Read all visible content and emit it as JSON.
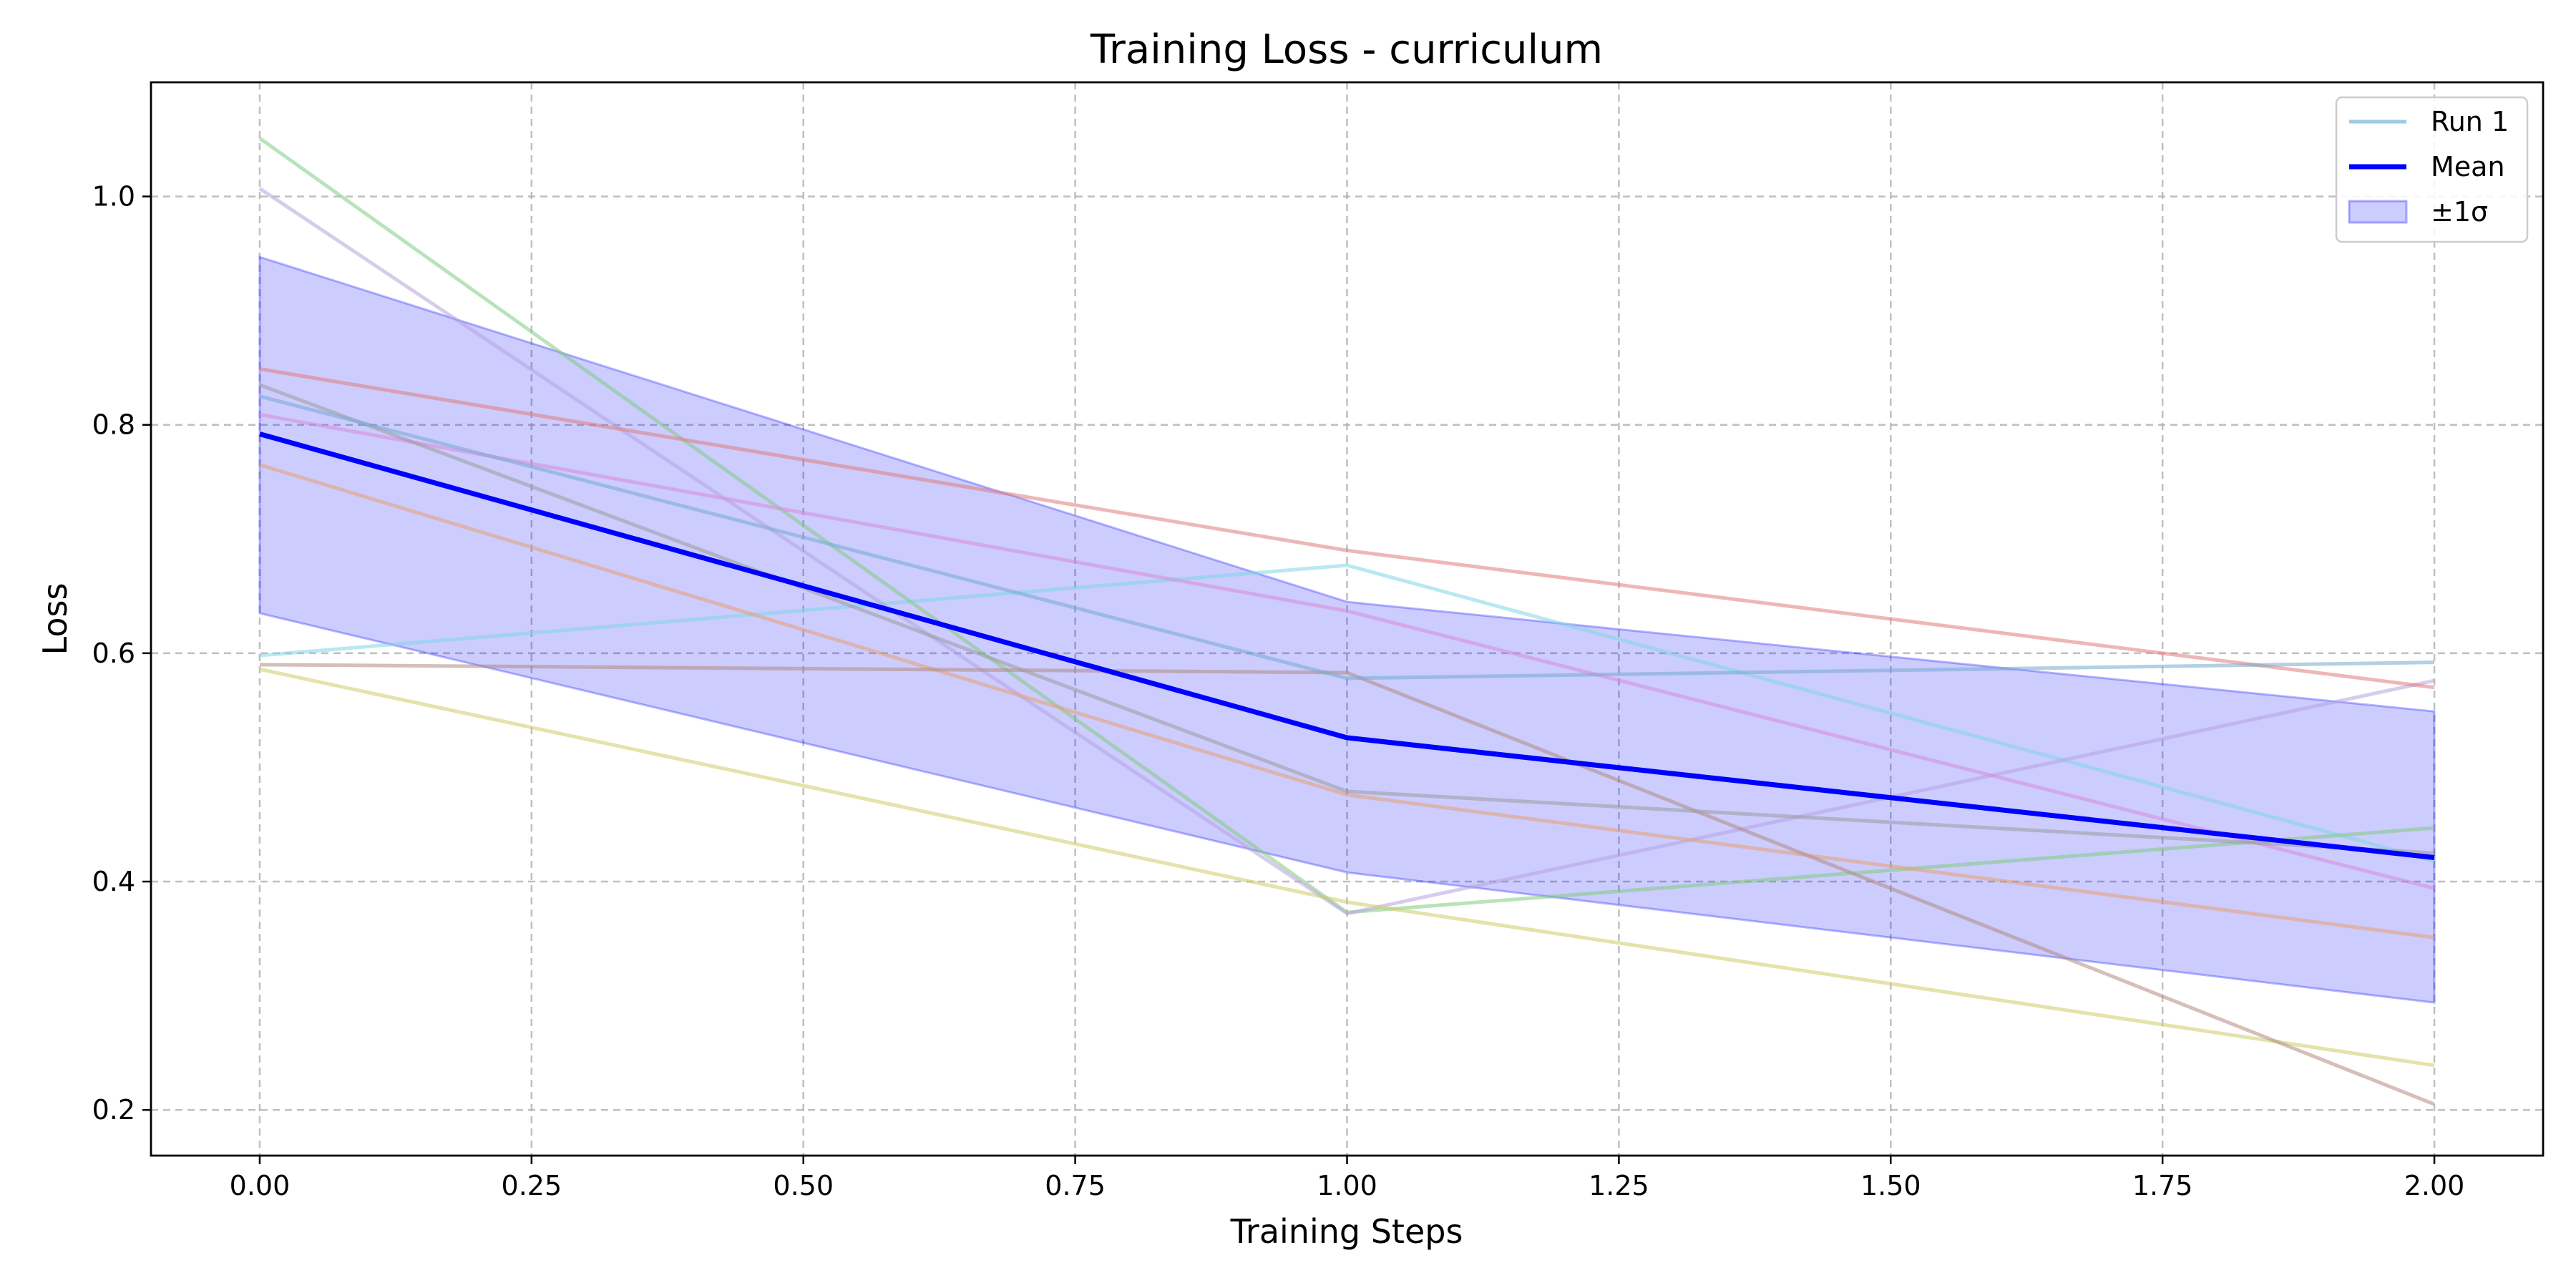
{
  "chart_data": {
    "type": "line",
    "title": "Training Loss - curriculum",
    "xlabel": "Training Steps",
    "ylabel": "Loss",
    "xlim": [
      -0.1,
      2.1
    ],
    "ylim": [
      0.16,
      1.1
    ],
    "x": [
      0,
      1,
      2
    ],
    "xticks": [
      0.0,
      0.25,
      0.5,
      0.75,
      1.0,
      1.25,
      1.5,
      1.75,
      2.0
    ],
    "xtick_labels": [
      "0.00",
      "0.25",
      "0.50",
      "0.75",
      "1.00",
      "1.25",
      "1.50",
      "1.75",
      "2.00"
    ],
    "yticks": [
      0.2,
      0.4,
      0.6,
      0.8,
      1.0
    ],
    "ytick_labels": [
      "0.2",
      "0.4",
      "0.6",
      "0.8",
      "1.0"
    ],
    "grid": true,
    "legend_position": "top-right",
    "legend": [
      {
        "label": "Run 1",
        "kind": "line",
        "color": "#9ecae1"
      },
      {
        "label": "Mean",
        "kind": "line",
        "color": "#0000ff"
      },
      {
        "label": "±1σ",
        "kind": "band",
        "color": "#0000ff"
      }
    ],
    "runs": [
      {
        "name": "Run 1",
        "values": [
          0.598,
          0.677,
          0.418
        ],
        "color": "#7fd6e6"
      },
      {
        "values": [
          1.051,
          0.373,
          0.447
        ],
        "color": "#7fcc7f"
      },
      {
        "values": [
          1.007,
          0.372,
          0.576
        ],
        "color": "#b7a3e0"
      },
      {
        "values": [
          0.849,
          0.69,
          0.57
        ],
        "color": "#e07b7b"
      },
      {
        "values": [
          0.809,
          0.637,
          0.394
        ],
        "color": "#d98bd9"
      },
      {
        "values": [
          0.765,
          0.476,
          0.351
        ],
        "color": "#e8a070"
      },
      {
        "values": [
          0.586,
          0.382,
          0.239
        ],
        "color": "#cccc66"
      },
      {
        "values": [
          0.59,
          0.583,
          0.205
        ],
        "color": "#b08a80"
      },
      {
        "values": [
          0.835,
          0.479,
          0.425
        ],
        "color": "#9a9a9a"
      },
      {
        "values": [
          0.825,
          0.578,
          0.592
        ],
        "color": "#74a9cf"
      }
    ],
    "mean": {
      "name": "Mean",
      "values": [
        0.792,
        0.526,
        0.421
      ],
      "color": "#0000ff"
    },
    "band": {
      "name": "±1σ",
      "upper": [
        0.947,
        0.645,
        0.549
      ],
      "lower": [
        0.635,
        0.408,
        0.294
      ],
      "color": "#0000ff"
    }
  }
}
